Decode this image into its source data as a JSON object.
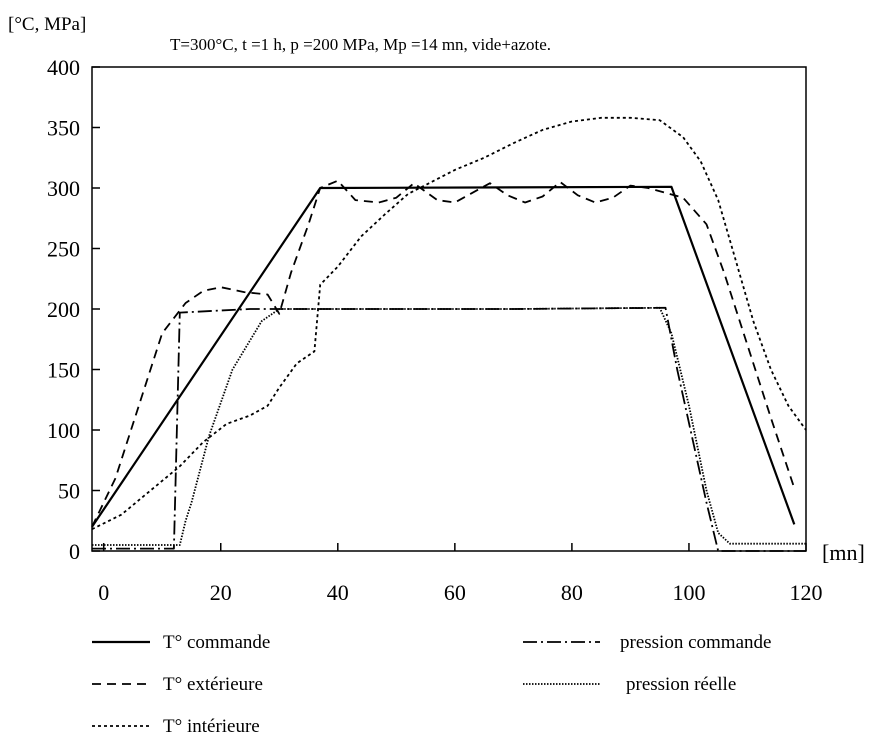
{
  "chart_data": {
    "type": "line",
    "title": "T=300°C, t =1 h, p =200 MPa, Mp =14 mn, vide+azote.",
    "ylabel": "[°C, MPa]",
    "xlabel": "[mn]",
    "xlim": [
      -2,
      120
    ],
    "ylim": [
      0,
      400
    ],
    "xticks": [
      0,
      20,
      40,
      60,
      80,
      100,
      120
    ],
    "yticks": [
      0,
      50,
      100,
      150,
      200,
      250,
      300,
      350,
      400
    ],
    "grid": false,
    "legend_position": "bottom",
    "series": [
      {
        "name": "T° commande",
        "style": "solid",
        "points": [
          [
            -2,
            20
          ],
          [
            37,
            300
          ],
          [
            97,
            301
          ],
          [
            118,
            22
          ]
        ]
      },
      {
        "name": "T° extérieure",
        "style": "dashed",
        "points": [
          [
            -2,
            20
          ],
          [
            2,
            60
          ],
          [
            6,
            120
          ],
          [
            10,
            180
          ],
          [
            14,
            205
          ],
          [
            17,
            215
          ],
          [
            20,
            218
          ],
          [
            24,
            214
          ],
          [
            28,
            212
          ],
          [
            30,
            196
          ],
          [
            32,
            230
          ],
          [
            35,
            270
          ],
          [
            37,
            300
          ],
          [
            40,
            306
          ],
          [
            43,
            290
          ],
          [
            47,
            288
          ],
          [
            50,
            292
          ],
          [
            53,
            304
          ],
          [
            57,
            290
          ],
          [
            60,
            288
          ],
          [
            63,
            296
          ],
          [
            66,
            304
          ],
          [
            69,
            294
          ],
          [
            72,
            288
          ],
          [
            75,
            293
          ],
          [
            78,
            305
          ],
          [
            81,
            294
          ],
          [
            84,
            288
          ],
          [
            87,
            292
          ],
          [
            90,
            302
          ],
          [
            93,
            300
          ],
          [
            96,
            296
          ],
          [
            99,
            292
          ],
          [
            103,
            270
          ],
          [
            106,
            230
          ],
          [
            110,
            170
          ],
          [
            114,
            110
          ],
          [
            118,
            52
          ]
        ]
      },
      {
        "name": "T° intérieure",
        "style": "dotted",
        "points": [
          [
            -2,
            18
          ],
          [
            3,
            30
          ],
          [
            8,
            50
          ],
          [
            13,
            70
          ],
          [
            17,
            90
          ],
          [
            21,
            105
          ],
          [
            25,
            112
          ],
          [
            28,
            120
          ],
          [
            30,
            135
          ],
          [
            33,
            155
          ],
          [
            36,
            165
          ],
          [
            37,
            220
          ],
          [
            40,
            235
          ],
          [
            44,
            260
          ],
          [
            48,
            278
          ],
          [
            52,
            295
          ],
          [
            56,
            305
          ],
          [
            60,
            315
          ],
          [
            65,
            325
          ],
          [
            70,
            337
          ],
          [
            75,
            348
          ],
          [
            80,
            355
          ],
          [
            85,
            358
          ],
          [
            90,
            358
          ],
          [
            95,
            356
          ],
          [
            99,
            342
          ],
          [
            102,
            322
          ],
          [
            105,
            290
          ],
          [
            108,
            240
          ],
          [
            111,
            190
          ],
          [
            114,
            150
          ],
          [
            117,
            120
          ],
          [
            120,
            100
          ]
        ]
      },
      {
        "name": "pression commande",
        "style": "dash-dot",
        "points": [
          [
            -2,
            2
          ],
          [
            12,
            2
          ],
          [
            13,
            197
          ],
          [
            25,
            200
          ],
          [
            70,
            200
          ],
          [
            96,
            201
          ],
          [
            98,
            150
          ],
          [
            103,
            40
          ],
          [
            105,
            0
          ],
          [
            120,
            0
          ]
        ]
      },
      {
        "name": "pression réelle",
        "style": "fine-dotted",
        "points": [
          [
            -2,
            5
          ],
          [
            13,
            5
          ],
          [
            14,
            25
          ],
          [
            15,
            40
          ],
          [
            18,
            95
          ],
          [
            22,
            150
          ],
          [
            27,
            190
          ],
          [
            30,
            200
          ],
          [
            40,
            200
          ],
          [
            70,
            200
          ],
          [
            95,
            201
          ],
          [
            97,
            180
          ],
          [
            100,
            120
          ],
          [
            103,
            50
          ],
          [
            105,
            15
          ],
          [
            107,
            6
          ],
          [
            120,
            6
          ]
        ]
      }
    ]
  },
  "colors": {
    "line": "#000000",
    "background": "#ffffff"
  }
}
